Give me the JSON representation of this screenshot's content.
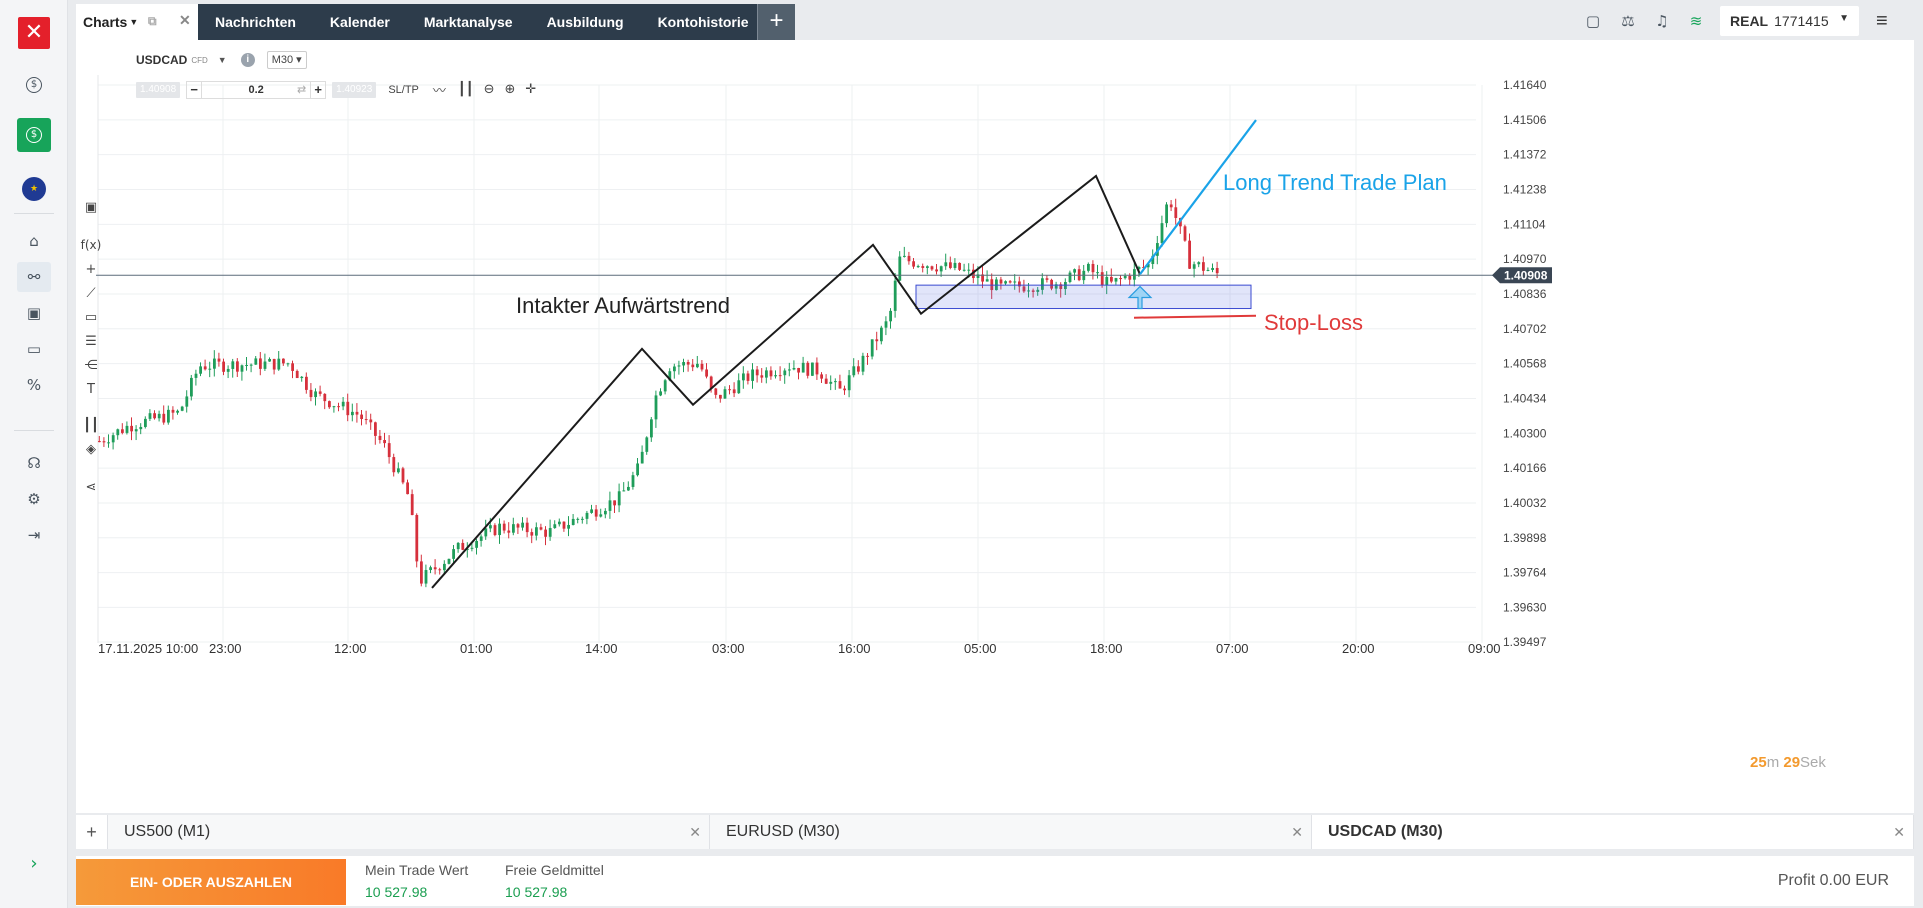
{
  "sidebar": {
    "logo_glyph": "✕",
    "items": [
      {
        "name": "dollar-icon",
        "glyph": "$"
      },
      {
        "name": "deposit-icon",
        "glyph": "$"
      },
      {
        "name": "eu-flag-icon",
        "glyph": "★"
      },
      {
        "name": "home-icon",
        "glyph": "⌂"
      },
      {
        "name": "chart-icon",
        "glyph": "⚯"
      },
      {
        "name": "portfolio-icon",
        "glyph": "▣"
      },
      {
        "name": "card-icon",
        "glyph": "▭"
      },
      {
        "name": "percent-icon",
        "glyph": "%"
      },
      {
        "name": "headset-icon",
        "glyph": "☊"
      },
      {
        "name": "settings-icon",
        "glyph": "⚙"
      },
      {
        "name": "logout-icon",
        "glyph": "⇥"
      }
    ],
    "expand_glyph": "›"
  },
  "topbar": {
    "charts_tab": "Charts",
    "nav": [
      "Nachrichten",
      "Kalender",
      "Marktanalyse",
      "Ausbildung",
      "Kontohistorie"
    ],
    "plus": "+",
    "account_type": "REAL",
    "account_number": "1771415",
    "accent_color": "#17a45a"
  },
  "chart": {
    "symbol": "USDCAD",
    "symbol_type": "CFD",
    "timeframe": "M30",
    "bid": "1.40908",
    "ask": "1.40923",
    "quantity": "0.2",
    "sltp": "SL/TP",
    "countdown_min": "25",
    "countdown_min_unit": "m",
    "countdown_sec": "29",
    "countdown_sec_unit": "Sek"
  },
  "chart_data": {
    "type": "candlestick",
    "symbol": "USDCAD",
    "timeframe": "M30",
    "y_ticks": [
      "1.41640",
      "1.41506",
      "1.41372",
      "1.41238",
      "1.41104",
      "1.40970",
      "1.40836",
      "1.40702",
      "1.40568",
      "1.40434",
      "1.40300",
      "1.40166",
      "1.40032",
      "1.39898",
      "1.39764",
      "1.39630",
      "1.39497"
    ],
    "ylim": [
      1.39497,
      1.4164
    ],
    "x_ticks": [
      "17.11.2025 10:00",
      "23:00",
      "12:00",
      "01:00",
      "14:00",
      "03:00",
      "16:00",
      "05:00",
      "18:00",
      "07:00",
      "20:00",
      "09:00"
    ],
    "current_price": "1.40908",
    "current_price_value": 1.40908,
    "trend_path": [
      1.39705,
      1.40625,
      1.4041,
      1.41025,
      1.4076,
      1.4129,
      1.40912
    ],
    "plan_line": [
      1.40912,
      1.41505
    ],
    "stop_loss": 1.4076,
    "zone": [
      1.4087,
      1.4078
    ],
    "annotations": {
      "trend_label": "Intakter Aufwärtstrend",
      "plan_label": "Long Trend Trade Plan",
      "stop_label": "Stop-Loss"
    },
    "colors": {
      "up": "#1f9d5a",
      "down": "#d6303c",
      "trend": "#1b1b1b",
      "plan": "#1aa3e8",
      "stop": "#e03a3a",
      "zone": "#3a4ad0"
    }
  },
  "chart_tabs": [
    {
      "label": "US500 (M1)",
      "active": false
    },
    {
      "label": "EURUSD (M30)",
      "active": false
    },
    {
      "label": "USDCAD (M30)",
      "active": true
    }
  ],
  "footer": {
    "deposit_label": "EIN- ODER AUSZAHLEN",
    "trade_value_label": "Mein Trade Wert",
    "trade_value": "10 527.98",
    "free_funds_label": "Freie Geldmittel",
    "free_funds": "10 527.98",
    "profit": "Profit 0.00 EUR"
  }
}
